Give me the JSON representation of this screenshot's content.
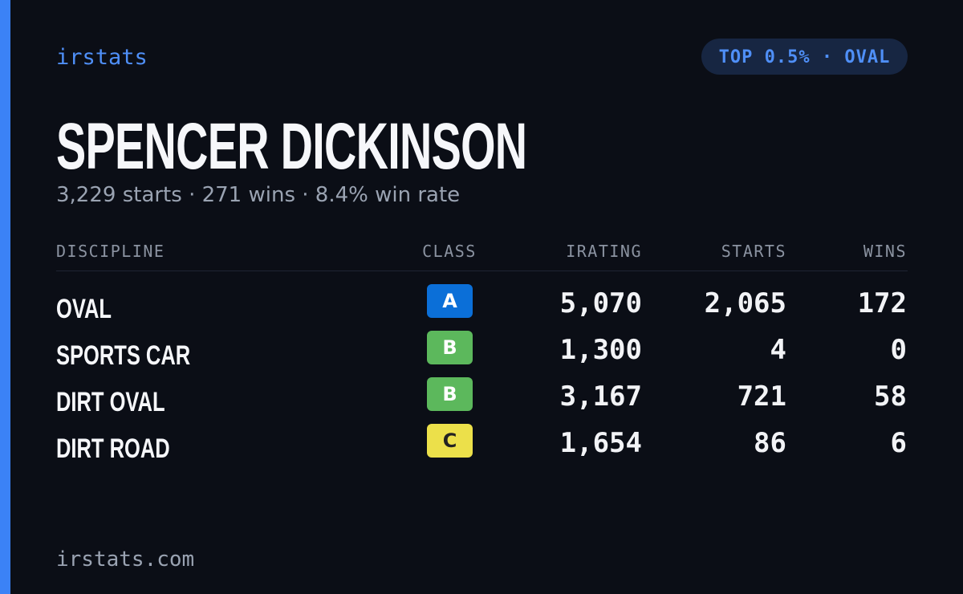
{
  "brand": "irstats",
  "badge": "TOP 0.5% · OVAL",
  "driver": {
    "name": "SPENCER DICKINSON",
    "summary": "3,229 starts · 271 wins · 8.4% win rate"
  },
  "table": {
    "headers": [
      "DISCIPLINE",
      "CLASS",
      "IRATING",
      "STARTS",
      "WINS"
    ],
    "rows": [
      {
        "discipline": "OVAL",
        "class": "A",
        "class_color": "#0b6fd8",
        "irating": "5,070",
        "starts": "2,065",
        "wins": "172"
      },
      {
        "discipline": "SPORTS CAR",
        "class": "B",
        "class_color": "#5cb85c",
        "irating": "1,300",
        "starts": "4",
        "wins": "0"
      },
      {
        "discipline": "DIRT OVAL",
        "class": "B",
        "class_color": "#5cb85c",
        "irating": "3,167",
        "starts": "721",
        "wins": "58"
      },
      {
        "discipline": "DIRT ROAD",
        "class": "C",
        "class_color": "#ece04a",
        "irating": "1,654",
        "starts": "86",
        "wins": "6"
      }
    ]
  },
  "footer": "irstats.com"
}
